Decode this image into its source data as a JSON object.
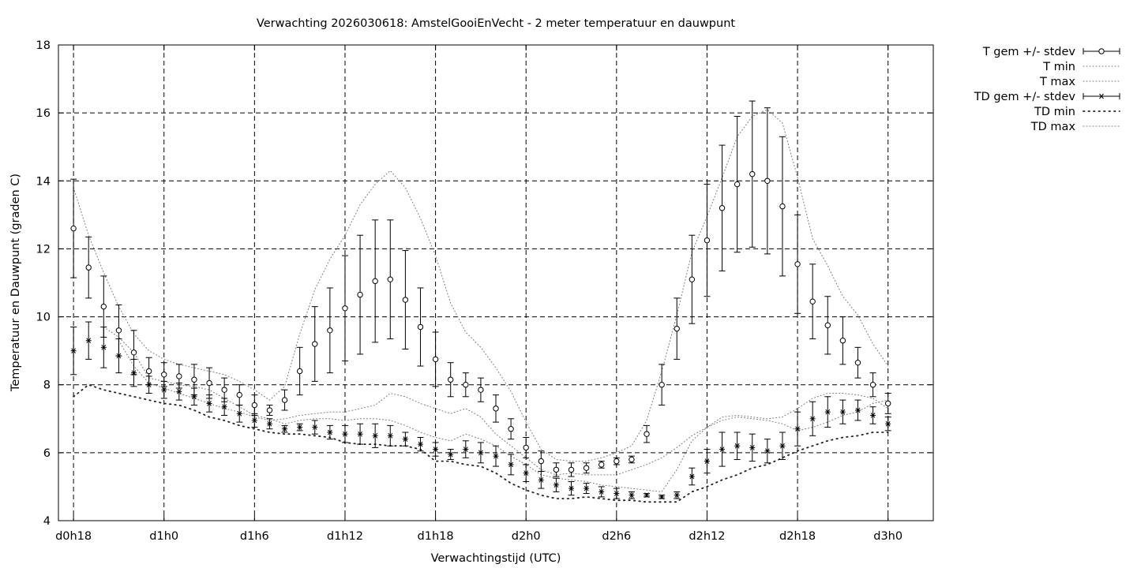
{
  "chart_data": {
    "type": "line",
    "title": "Verwachting 2026030618: AmstelGooiEnVecht - 2 meter temperatuur en dauwpunt",
    "xlabel": "Verwachtingstijd (UTC)",
    "ylabel": "Temperatuur en Dauwpunt (graden C)",
    "x_unit": "hours since d0h0",
    "xlim": [
      17,
      75
    ],
    "ylim": [
      4,
      18
    ],
    "x_ticks": [
      {
        "x": 18,
        "label": "d0h18"
      },
      {
        "x": 24,
        "label": "d1h0"
      },
      {
        "x": 30,
        "label": "d1h6"
      },
      {
        "x": 36,
        "label": "d1h12"
      },
      {
        "x": 42,
        "label": "d1h18"
      },
      {
        "x": 48,
        "label": "d2h0"
      },
      {
        "x": 54,
        "label": "d2h6"
      },
      {
        "x": 60,
        "label": "d2h12"
      },
      {
        "x": 66,
        "label": "d2h18"
      },
      {
        "x": 72,
        "label": "d3h0"
      }
    ],
    "y_ticks": [
      4,
      6,
      8,
      10,
      12,
      14,
      16,
      18
    ],
    "grid": true,
    "legend_position": "outside-top-right",
    "x": [
      18,
      19,
      20,
      21,
      22,
      23,
      24,
      25,
      26,
      27,
      28,
      29,
      30,
      31,
      32,
      33,
      34,
      35,
      36,
      37,
      38,
      39,
      40,
      41,
      42,
      43,
      44,
      45,
      46,
      47,
      48,
      49,
      50,
      51,
      52,
      53,
      54,
      55,
      56,
      57,
      58,
      59,
      60,
      61,
      62,
      63,
      64,
      65,
      66,
      67,
      68,
      69,
      70,
      71,
      72
    ],
    "series": [
      {
        "name": "T gem +/- stdev",
        "style": "errorbars-open-circle",
        "mean": [
          12.6,
          11.45,
          10.3,
          9.6,
          8.95,
          8.4,
          8.3,
          8.25,
          8.15,
          8.05,
          7.85,
          7.7,
          7.4,
          7.25,
          7.55,
          8.4,
          9.2,
          9.6,
          10.25,
          10.65,
          11.05,
          11.1,
          10.5,
          9.7,
          8.75,
          8.15,
          8.0,
          7.85,
          7.3,
          6.7,
          6.15,
          5.75,
          5.5,
          5.5,
          5.55,
          5.65,
          5.75,
          5.8,
          6.55,
          8.0,
          9.65,
          11.1,
          12.25,
          13.2,
          13.9,
          14.2,
          14.0,
          13.25,
          11.55,
          10.45,
          9.75,
          9.3,
          8.65,
          8.0,
          7.45
        ],
        "stdev": [
          1.45,
          0.9,
          0.9,
          0.75,
          0.65,
          0.4,
          0.35,
          0.35,
          0.45,
          0.45,
          0.35,
          0.3,
          0.3,
          0.15,
          0.3,
          0.7,
          1.1,
          1.25,
          1.55,
          1.75,
          1.8,
          1.75,
          1.45,
          1.15,
          0.8,
          0.5,
          0.35,
          0.35,
          0.4,
          0.3,
          0.3,
          0.3,
          0.2,
          0.2,
          0.15,
          0.1,
          0.1,
          0.1,
          0.25,
          0.6,
          0.9,
          1.3,
          1.65,
          1.85,
          2.0,
          2.15,
          2.15,
          2.05,
          1.45,
          1.1,
          0.85,
          0.7,
          0.45,
          0.35,
          0.3
        ]
      },
      {
        "name": "T min",
        "style": "dotted",
        "values": [
          null,
          null,
          null,
          9.3,
          8.55,
          8.05,
          7.9,
          7.75,
          7.6,
          7.45,
          7.3,
          7.2,
          7.05,
          6.95,
          7.0,
          7.1,
          7.15,
          7.2,
          7.2,
          7.3,
          7.4,
          7.75,
          7.65,
          7.45,
          7.3,
          7.15,
          7.3,
          7.05,
          6.55,
          6.2,
          5.85,
          5.5,
          5.35,
          5.4,
          5.35,
          5.35,
          5.35,
          5.5,
          5.65,
          5.85,
          6.15,
          6.5,
          6.75,
          6.95,
          7.05,
          7.0,
          6.95,
          6.85,
          6.65,
          6.75,
          6.9,
          7.1,
          7.2,
          7.45,
          7.55
        ]
      },
      {
        "name": "T max",
        "style": "dotted",
        "values": [
          13.8,
          12.4,
          11.3,
          10.3,
          9.5,
          9.0,
          8.75,
          8.6,
          8.5,
          8.4,
          8.3,
          8.1,
          7.85,
          7.55,
          7.95,
          9.5,
          10.8,
          11.7,
          12.4,
          13.3,
          13.9,
          14.3,
          13.8,
          12.9,
          11.8,
          10.4,
          9.55,
          9.1,
          8.5,
          7.8,
          6.9,
          6.1,
          5.8,
          5.75,
          5.75,
          5.85,
          6.0,
          6.2,
          6.95,
          8.4,
          10.05,
          11.9,
          12.95,
          14.1,
          15.3,
          15.9,
          16.1,
          15.7,
          14.1,
          12.3,
          11.5,
          10.6,
          10.05,
          9.2,
          8.55
        ]
      },
      {
        "name": "TD gem +/- stdev",
        "style": "errorbars-star",
        "mean": [
          9.0,
          9.3,
          9.1,
          8.85,
          8.35,
          8.0,
          7.85,
          7.8,
          7.65,
          7.45,
          7.35,
          7.15,
          6.95,
          6.85,
          6.7,
          6.75,
          6.75,
          6.6,
          6.55,
          6.55,
          6.5,
          6.5,
          6.4,
          6.25,
          6.1,
          5.95,
          6.1,
          6.0,
          5.9,
          5.65,
          5.4,
          5.2,
          5.05,
          4.95,
          4.95,
          4.85,
          4.8,
          4.75,
          4.75,
          4.7,
          4.75,
          5.3,
          5.75,
          6.1,
          6.2,
          6.15,
          6.05,
          6.2,
          6.7,
          7.0,
          7.2,
          7.2,
          7.25,
          7.1,
          6.85
        ],
        "stdev": [
          0.7,
          0.55,
          0.6,
          0.5,
          0.4,
          0.25,
          0.25,
          0.25,
          0.25,
          0.25,
          0.25,
          0.25,
          0.2,
          0.15,
          0.1,
          0.1,
          0.2,
          0.2,
          0.25,
          0.3,
          0.35,
          0.3,
          0.2,
          0.2,
          0.2,
          0.15,
          0.25,
          0.3,
          0.3,
          0.3,
          0.25,
          0.25,
          0.2,
          0.2,
          0.15,
          0.15,
          0.15,
          0.1,
          0.05,
          0.05,
          0.1,
          0.25,
          0.35,
          0.5,
          0.4,
          0.4,
          0.35,
          0.4,
          0.5,
          0.5,
          0.45,
          0.35,
          0.3,
          0.25,
          0.2
        ]
      },
      {
        "name": "TD min",
        "style": "dotted-heavy",
        "values": [
          7.65,
          8.0,
          7.85,
          7.75,
          7.65,
          7.55,
          7.45,
          7.4,
          7.25,
          7.05,
          6.95,
          6.8,
          6.7,
          6.6,
          6.55,
          6.55,
          6.5,
          6.45,
          6.3,
          6.25,
          6.25,
          6.2,
          6.2,
          6.1,
          5.75,
          5.75,
          5.65,
          5.6,
          5.4,
          5.1,
          4.9,
          4.75,
          4.65,
          4.65,
          4.7,
          4.65,
          4.6,
          4.6,
          4.55,
          4.55,
          4.55,
          4.85,
          5.0,
          5.2,
          5.35,
          5.55,
          5.65,
          5.85,
          6.05,
          6.2,
          6.35,
          6.45,
          6.5,
          6.6,
          6.6
        ]
      },
      {
        "name": "TD max",
        "style": "dotted",
        "values": [
          null,
          null,
          9.7,
          9.4,
          8.95,
          8.2,
          8.1,
          8.0,
          7.95,
          7.85,
          7.6,
          7.35,
          7.1,
          7.0,
          6.85,
          6.95,
          7.0,
          7.0,
          6.95,
          7.0,
          7.0,
          6.95,
          6.8,
          6.6,
          6.45,
          6.35,
          6.55,
          6.4,
          6.2,
          5.9,
          5.65,
          5.35,
          5.25,
          5.2,
          5.15,
          5.05,
          5.0,
          4.95,
          4.9,
          4.85,
          5.5,
          6.35,
          6.75,
          7.05,
          7.1,
          7.05,
          7.0,
          7.05,
          7.3,
          7.6,
          7.75,
          7.75,
          7.7,
          7.6,
          7.3
        ]
      }
    ]
  }
}
